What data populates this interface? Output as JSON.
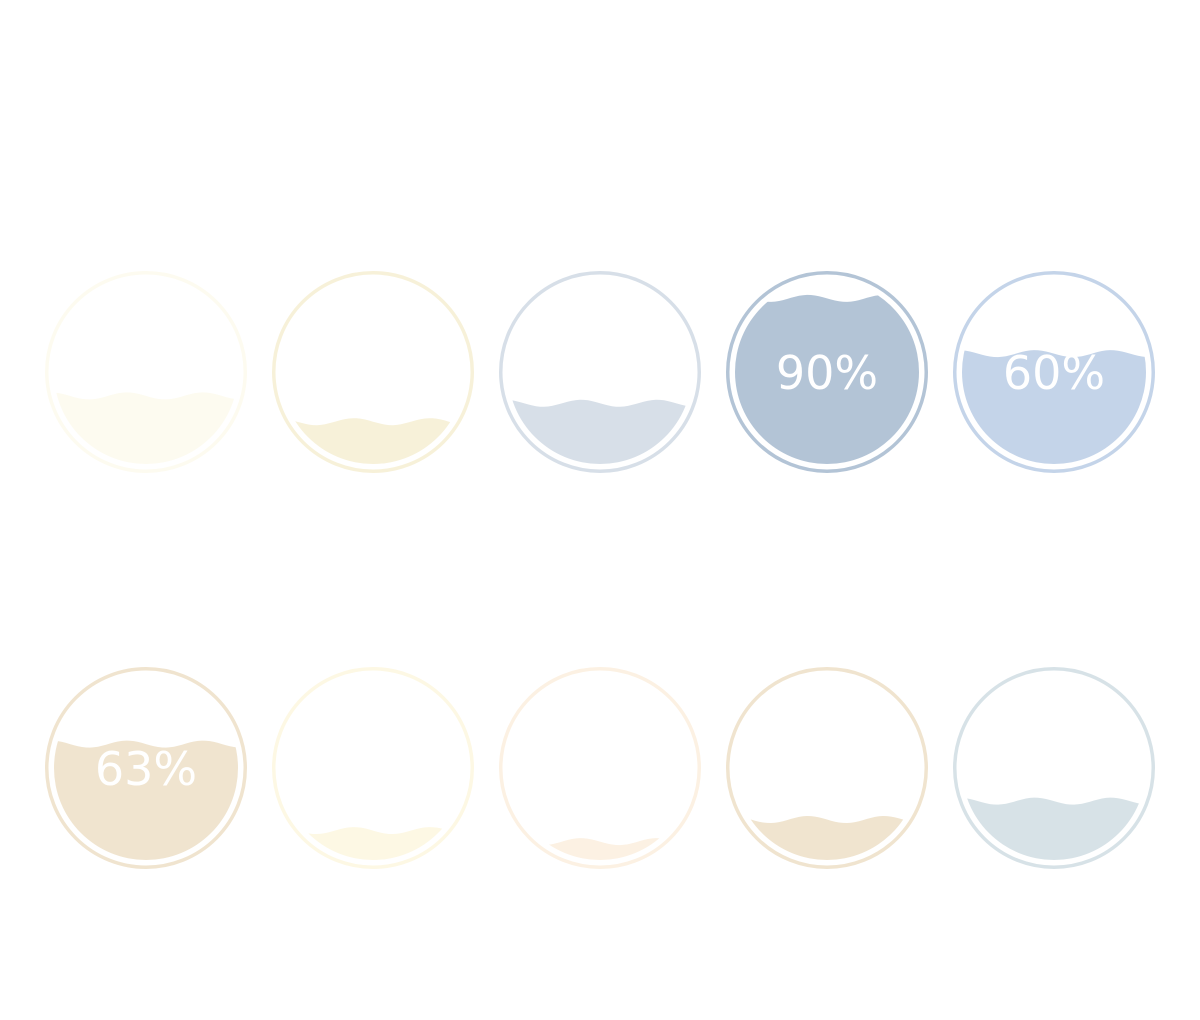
{
  "chart_data": {
    "type": "liquid-fill-gauge",
    "gauges": [
      {
        "value": 37,
        "label": "",
        "color": "#fdfbf0"
      },
      {
        "value": 23,
        "label": "",
        "color": "#f7f1d9"
      },
      {
        "value": 33,
        "label": "",
        "color": "#d7dfe8"
      },
      {
        "value": 90,
        "label": "90%",
        "color": "#b3c4d6"
      },
      {
        "value": 60,
        "label": "60%",
        "color": "#c4d4e9"
      },
      {
        "value": 63,
        "label": "63%",
        "color": "#f0e4cf"
      },
      {
        "value": 16,
        "label": "",
        "color": "#fdf8e4"
      },
      {
        "value": 10,
        "label": "",
        "color": "#fcf1e3"
      },
      {
        "value": 22,
        "label": "",
        "color": "#f0e4cf"
      },
      {
        "value": 32,
        "label": "",
        "color": "#d7e2e7"
      }
    ]
  }
}
